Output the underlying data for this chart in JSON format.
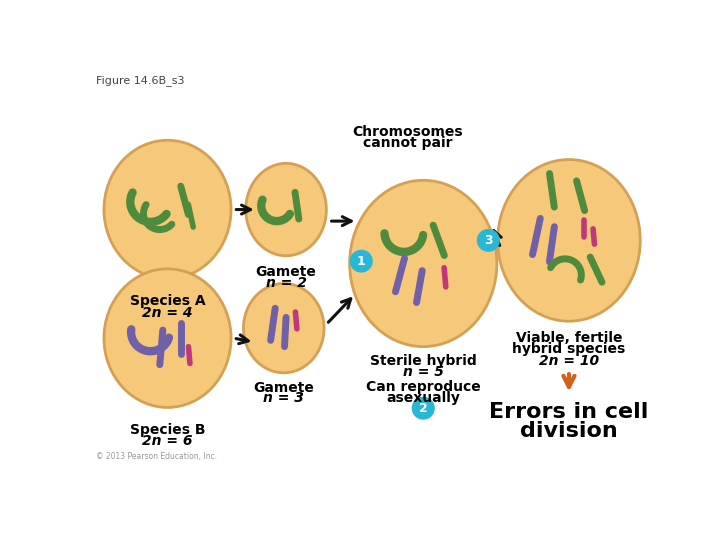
{
  "figure_label": "Figure 14.6B_s3",
  "background_color": "#ffffff",
  "cell_color": "#f5c87a",
  "cell_edge_color": "#d4a055",
  "green_chrom": "#4e8b3c",
  "purple_chrom": "#7060a8",
  "pink_chrom": "#c03878",
  "arrow_color": "#111111",
  "orange_arrow_color": "#d4601a",
  "cyan_circle_color": "#28b8d5",
  "labels": {
    "species_a": "Species A",
    "species_a2": "2n = 4",
    "species_b": "Species B",
    "species_b2": "2n = 6",
    "gamete_2a": "Gamete",
    "gamete_2b": "n = 2",
    "gamete_3a": "Gamete",
    "gamete_3b": "n = 3",
    "cannot_pair1": "Chromosomes",
    "cannot_pair2": "cannot pair",
    "sterile1": "Sterile hybrid",
    "sterile2": "n = 5",
    "can_reproduce1": "Can reproduce",
    "can_reproduce2": "asexually",
    "viable1": "Viable, fertile",
    "viable2": "hybrid species",
    "viable3": "2n = 10",
    "errors1": "Errors in cell",
    "errors2": "division"
  },
  "copyright": "© 2013 Pearson Education, Inc."
}
